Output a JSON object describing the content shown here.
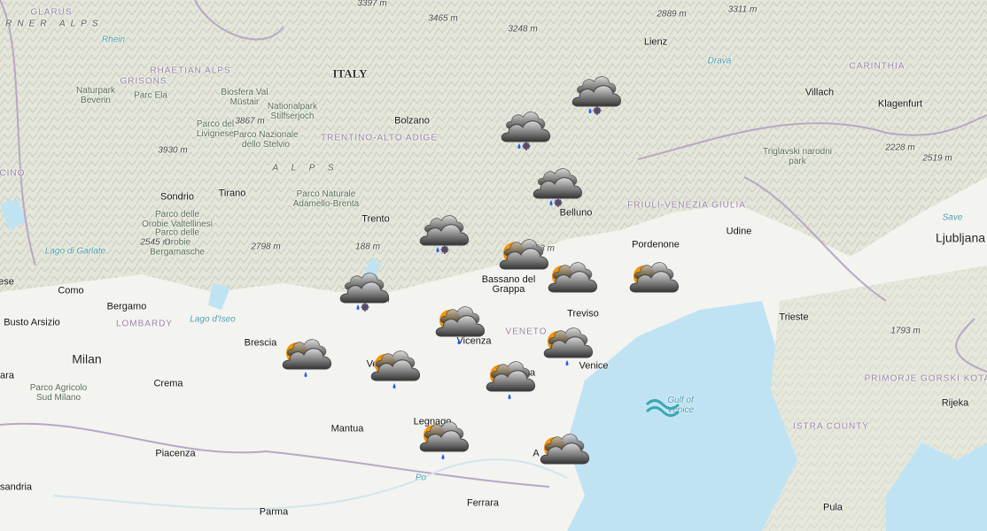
{
  "map": {
    "colors": {
      "land": "#f3f3ef",
      "mountains": "#dfe3d3",
      "forest": "#cfdcb8",
      "sea": "#bfe3f3",
      "border": "#b9a6c6",
      "water_label": "#4a9bab"
    },
    "labels": [
      {
        "text": "GLARUS",
        "kind": "region"
      },
      {
        "text": "ARNER ALPS",
        "kind": "range"
      },
      {
        "text": "Rhein",
        "kind": "water"
      },
      {
        "text": "3397 m",
        "kind": "elev"
      },
      {
        "text": "3465 m",
        "kind": "elev"
      },
      {
        "text": "3248 m",
        "kind": "elev"
      },
      {
        "text": "2889 m",
        "kind": "elev"
      },
      {
        "text": "3311 m",
        "kind": "elev"
      },
      {
        "text": "ITALY",
        "kind": "country"
      },
      {
        "text": "RHAETIAN ALPS",
        "kind": "region"
      },
      {
        "text": "GRISONS",
        "kind": "region"
      },
      {
        "text": "Naturpark Beverin",
        "kind": "park"
      },
      {
        "text": "Parc Ela",
        "kind": "park"
      },
      {
        "text": "Biosfera Val Müstair",
        "kind": "park"
      },
      {
        "text": "Nationalpark Stilfserjoch",
        "kind": "park"
      },
      {
        "text": "3867 m",
        "kind": "elev"
      },
      {
        "text": "Parco del Livignese",
        "kind": "park"
      },
      {
        "text": "Parco Nazionale dello Stelvio",
        "kind": "park"
      },
      {
        "text": "3930 m",
        "kind": "elev"
      },
      {
        "text": "A L P S",
        "kind": "range"
      },
      {
        "text": "Bolzano",
        "kind": "city"
      },
      {
        "text": "TRENTINO-ALTO ADIGE",
        "kind": "region"
      },
      {
        "text": "Lienz",
        "kind": "city"
      },
      {
        "text": "Drava",
        "kind": "water"
      },
      {
        "text": "CARINTHIA",
        "kind": "region"
      },
      {
        "text": "Villach",
        "kind": "city"
      },
      {
        "text": "Klagenfurt",
        "kind": "city"
      },
      {
        "text": "Triglavski narodni park",
        "kind": "park"
      },
      {
        "text": "2228 m",
        "kind": "elev"
      },
      {
        "text": "2519 m",
        "kind": "elev"
      },
      {
        "text": "ICINO",
        "kind": "region"
      },
      {
        "text": "Sondrio",
        "kind": "city"
      },
      {
        "text": "Tirano",
        "kind": "city"
      },
      {
        "text": "Parco Naturale Adamello-Brenta",
        "kind": "park"
      },
      {
        "text": "Parco delle Orobie Valtellinesi",
        "kind": "park"
      },
      {
        "text": "2545 m",
        "kind": "elev"
      },
      {
        "text": "Parco delle Orobie Bergamasche",
        "kind": "park"
      },
      {
        "text": "2798 m",
        "kind": "elev"
      },
      {
        "text": "188 m",
        "kind": "elev"
      },
      {
        "text": "Trento",
        "kind": "city"
      },
      {
        "text": "Lago di Garlate",
        "kind": "water"
      },
      {
        "text": "Belluno",
        "kind": "city"
      },
      {
        "text": "FRIULI-VENEZIA GIULIA",
        "kind": "region"
      },
      {
        "text": "Udine",
        "kind": "city"
      },
      {
        "text": "Pordenone",
        "kind": "city"
      },
      {
        "text": "Save",
        "kind": "water"
      },
      {
        "text": "Ljubljana",
        "kind": "big"
      },
      {
        "text": "753 m",
        "kind": "elev"
      },
      {
        "text": "Bassano del Grappa",
        "kind": "city"
      },
      {
        "text": "ese",
        "kind": "city"
      },
      {
        "text": "Como",
        "kind": "city"
      },
      {
        "text": "Bergamo",
        "kind": "city"
      },
      {
        "text": "Busto Arsizio",
        "kind": "city"
      },
      {
        "text": "LOMBARDY",
        "kind": "region"
      },
      {
        "text": "Lago d'Iseo",
        "kind": "water"
      },
      {
        "text": "2218 m",
        "kind": "elev"
      },
      {
        "text": "Brescia",
        "kind": "city"
      },
      {
        "text": "Milan",
        "kind": "big"
      },
      {
        "text": "ara",
        "kind": "city"
      },
      {
        "text": "Crema",
        "kind": "city"
      },
      {
        "text": "Parco Agricolo Sud Milano",
        "kind": "park"
      },
      {
        "text": "Vicenza",
        "kind": "city"
      },
      {
        "text": "VENETO",
        "kind": "region"
      },
      {
        "text": "Treviso",
        "kind": "city"
      },
      {
        "text": "Trieste",
        "kind": "city"
      },
      {
        "text": "1793 m",
        "kind": "elev"
      },
      {
        "text": "Venice",
        "kind": "city"
      },
      {
        "text": "Ve",
        "kind": "city"
      },
      {
        "text": "dua",
        "kind": "city"
      },
      {
        "text": "PRIMORJE GORSKI KOTAR COUNTY",
        "kind": "region"
      },
      {
        "text": "Rijeka",
        "kind": "city"
      },
      {
        "text": "Gulf of Venice",
        "kind": "water"
      },
      {
        "text": "Mantua",
        "kind": "city"
      },
      {
        "text": "Legnago",
        "kind": "city"
      },
      {
        "text": "ISTRA COUNTY",
        "kind": "region"
      },
      {
        "text": "Piacenza",
        "kind": "city"
      },
      {
        "text": "Po",
        "kind": "water"
      },
      {
        "text": "A",
        "kind": "city"
      },
      {
        "text": "sandria",
        "kind": "city"
      },
      {
        "text": "Parma",
        "kind": "city"
      },
      {
        "text": "Ferrara",
        "kind": "city"
      },
      {
        "text": "Pula",
        "kind": "city"
      }
    ],
    "weather_icons": [
      {
        "type": "cloudy-rain-snow"
      },
      {
        "type": "cloudy-rain-snow"
      },
      {
        "type": "cloudy-rain-snow"
      },
      {
        "type": "cloudy-rain-snow"
      },
      {
        "type": "cloudy-rain-snow"
      },
      {
        "type": "partly-cloudy",
        "rain": false
      },
      {
        "type": "partly-cloudy",
        "rain": false
      },
      {
        "type": "partly-cloudy",
        "rain": false
      },
      {
        "type": "partly-cloudy",
        "rain": true
      },
      {
        "type": "partly-cloudy",
        "rain": true
      },
      {
        "type": "partly-cloudy",
        "rain": true
      },
      {
        "type": "partly-cloudy",
        "rain": true
      },
      {
        "type": "partly-cloudy",
        "rain": true
      },
      {
        "type": "partly-cloudy",
        "rain": true
      },
      {
        "type": "partly-cloudy",
        "rain": false
      }
    ],
    "gulf_icon": "waves-icon"
  }
}
